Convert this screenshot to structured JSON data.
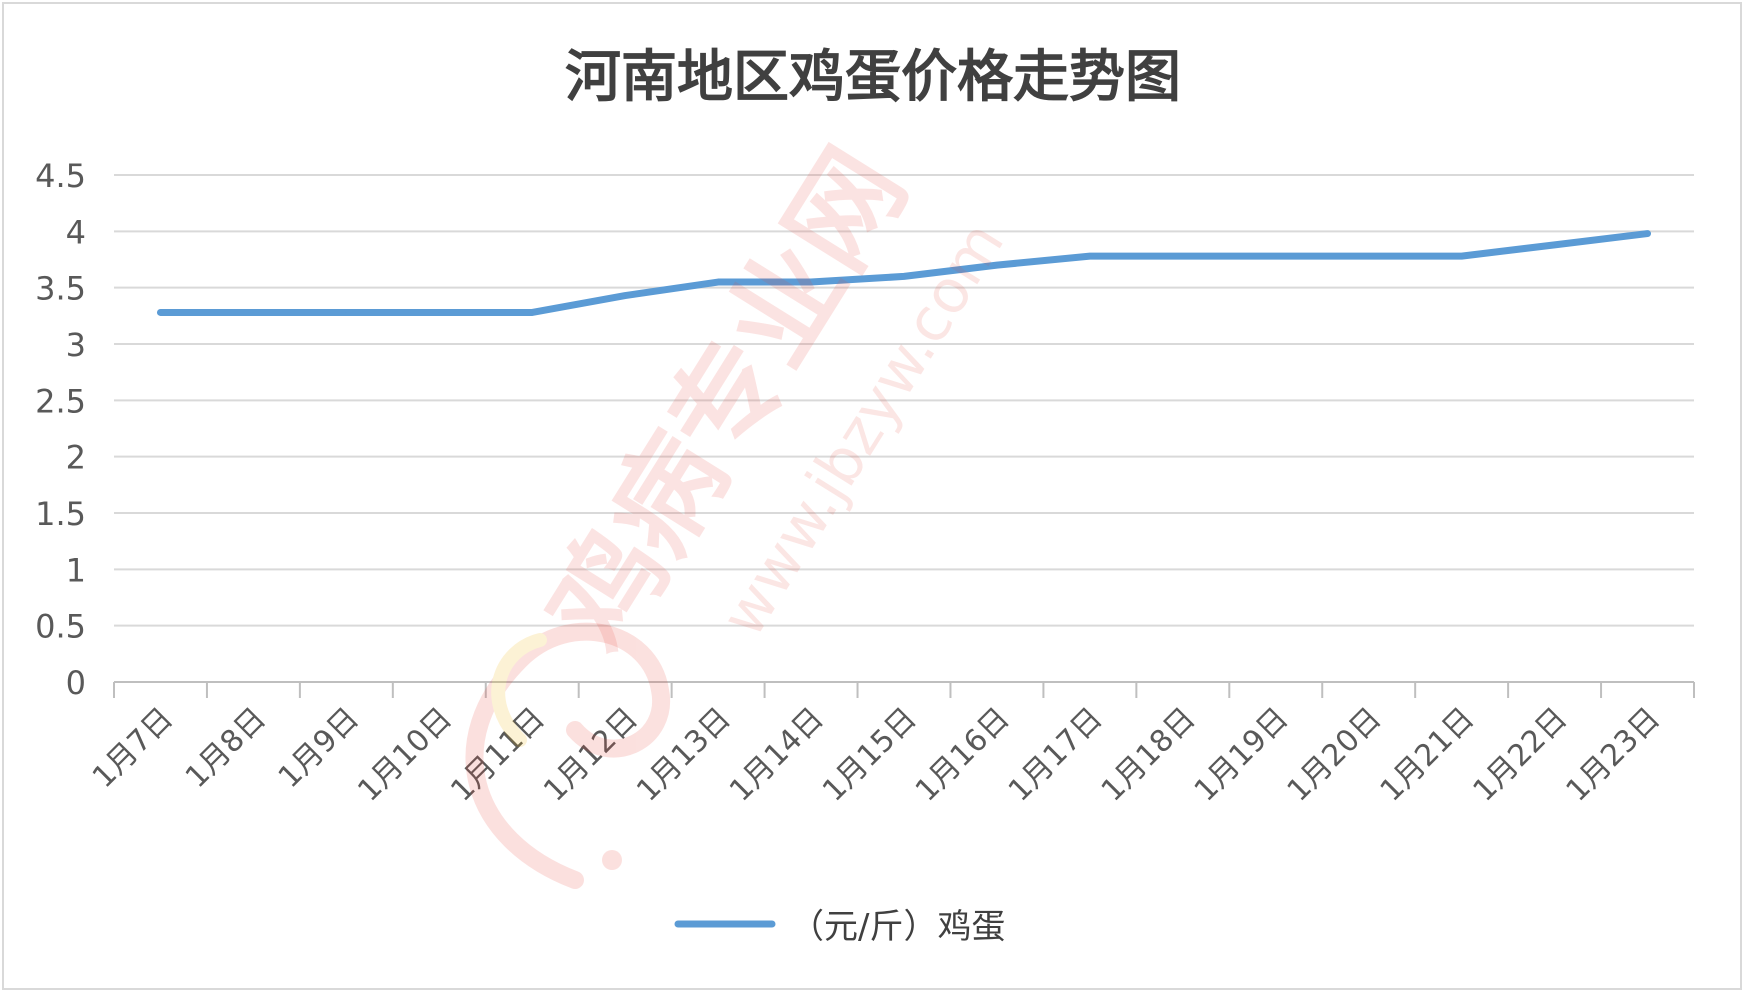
{
  "chart_data": {
    "type": "line",
    "title": "河南地区鸡蛋价格走势图",
    "xlabel": "",
    "ylabel": "",
    "categories": [
      "1月7日",
      "1月8日",
      "1月9日",
      "1月10日",
      "1月11日",
      "1月12日",
      "1月13日",
      "1月14日",
      "1月15日",
      "1月16日",
      "1月17日",
      "1月18日",
      "1月19日",
      "1月20日",
      "1月21日",
      "1月22日",
      "1月23日"
    ],
    "series": [
      {
        "name": "（元/斤）鸡蛋",
        "values": [
          3.28,
          3.28,
          3.28,
          3.28,
          3.28,
          3.43,
          3.55,
          3.55,
          3.6,
          3.7,
          3.78,
          3.78,
          3.78,
          3.78,
          3.78,
          3.88,
          3.98
        ]
      }
    ],
    "ylim": [
      0,
      4.5
    ],
    "yticks": [
      "0",
      "0.5",
      "1",
      "1.5",
      "2",
      "2.5",
      "3",
      "3.5",
      "4",
      "4.5"
    ],
    "grid": true,
    "legend": "bottom",
    "line_color": "#5b9bd5"
  },
  "watermark": {
    "main": "鸡病专业网",
    "url": "www.jbzyw.com",
    "color": "#e8433a"
  }
}
